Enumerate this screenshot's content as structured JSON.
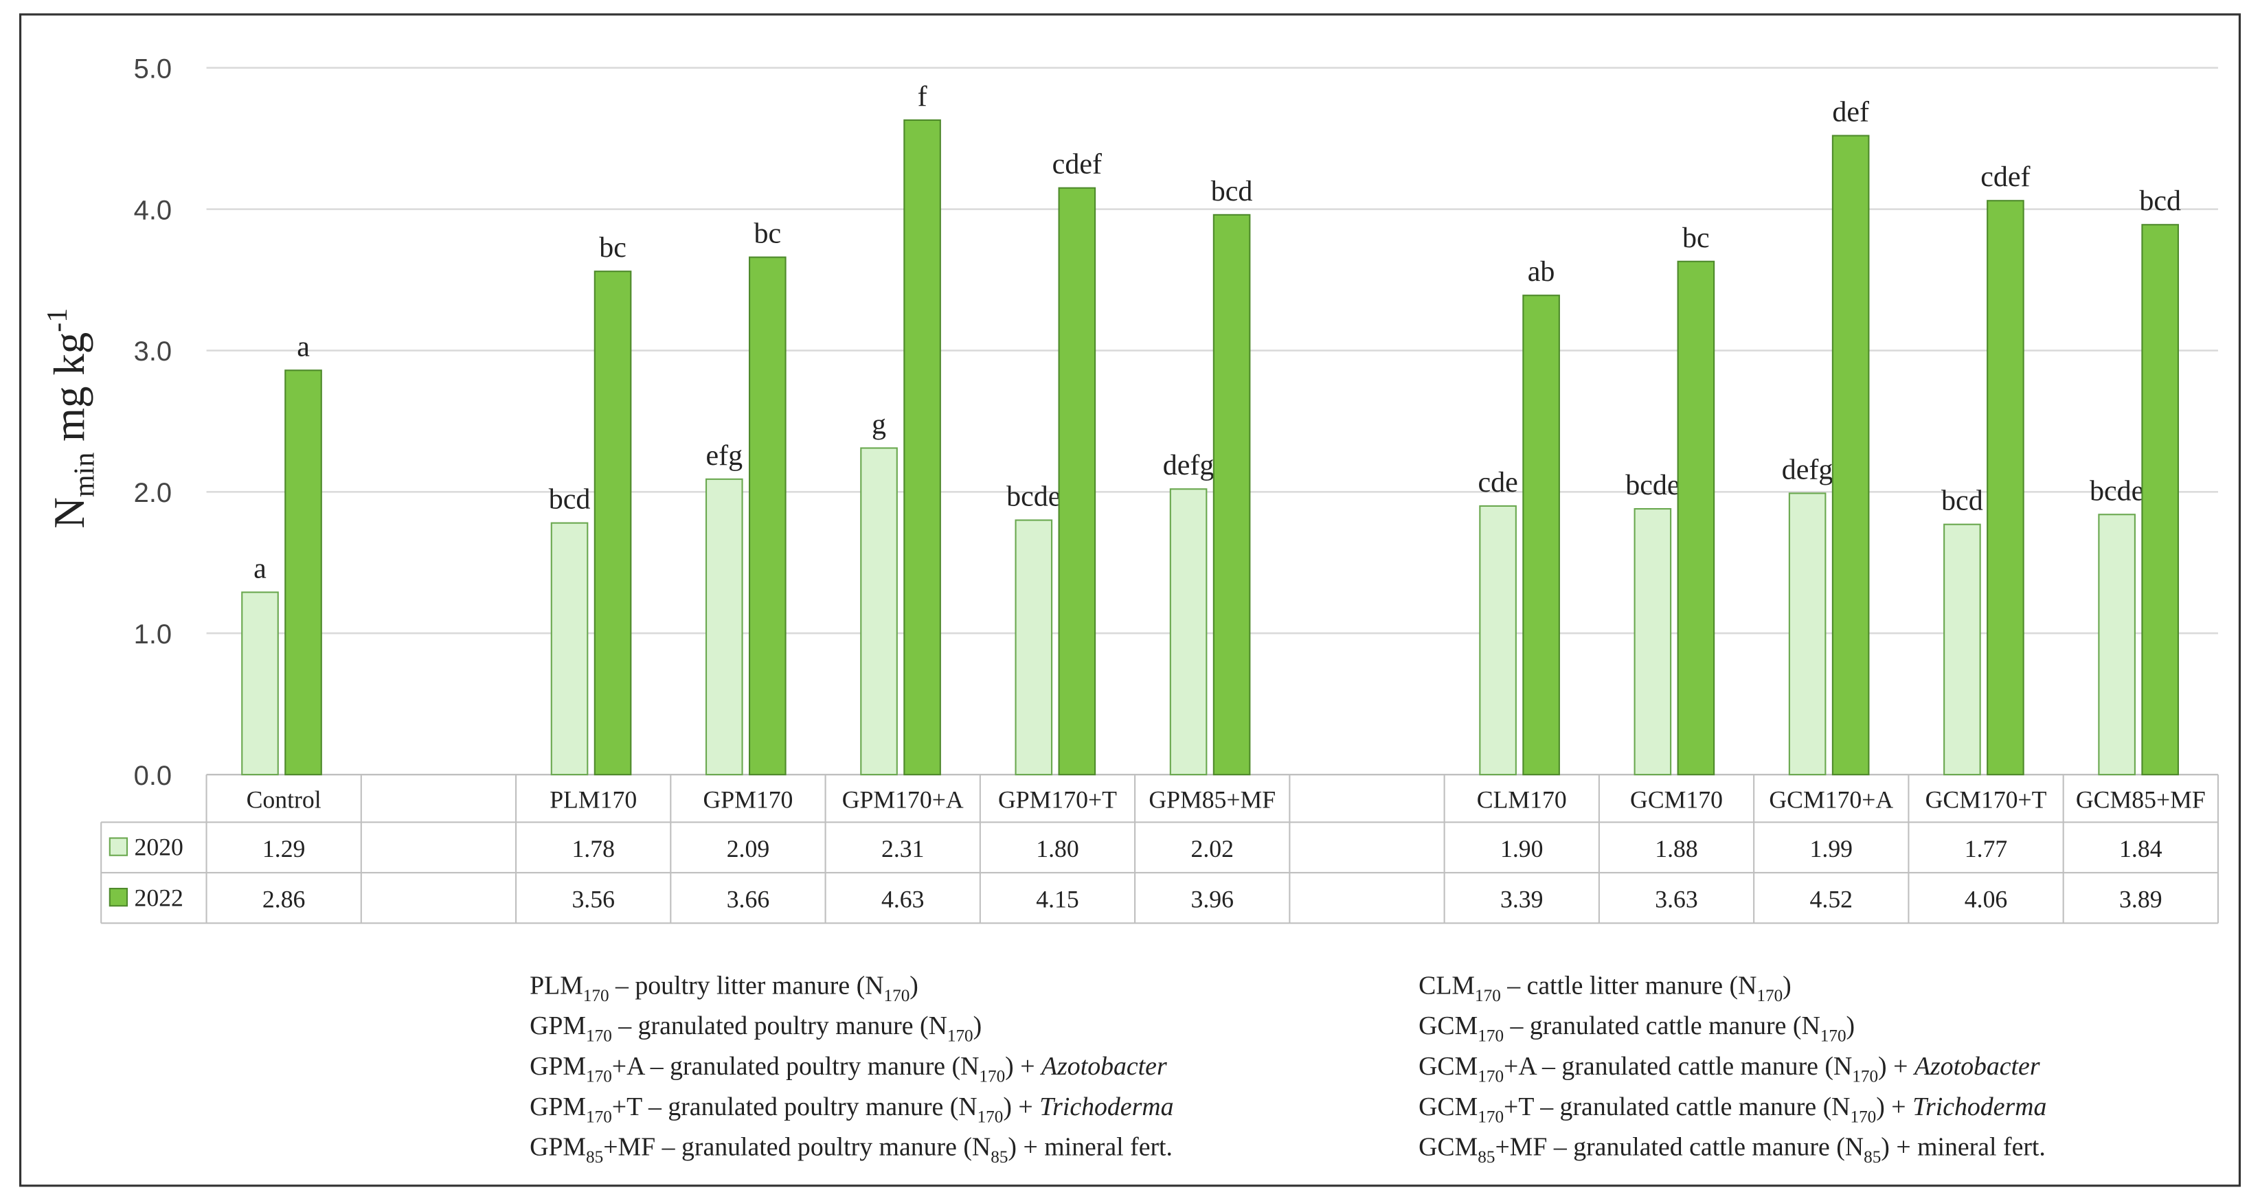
{
  "chart_data": {
    "type": "bar",
    "ylabel": {
      "base": "N",
      "sub": "min",
      "mid": " mg kg",
      "sup": "-1"
    },
    "categories": [
      "Control",
      null,
      "PLM170",
      "GPM170",
      "GPM170+A",
      "GPM170+T",
      "GPM85+MF",
      null,
      "CLM170",
      "GCM170",
      "GCM170+A",
      "GCM170+T",
      "GCM85+MF"
    ],
    "series": [
      {
        "name": "2020",
        "color": "#d9f2d0",
        "stroke": "#6aa84f",
        "values": [
          1.29,
          null,
          1.78,
          2.09,
          2.31,
          1.8,
          2.02,
          null,
          1.9,
          1.88,
          1.99,
          1.77,
          1.84
        ],
        "value_labels": [
          "1.29",
          null,
          "1.78",
          "2.09",
          "2.31",
          "1.80",
          "2.02",
          null,
          "1.90",
          "1.88",
          "1.99",
          "1.77",
          "1.84"
        ],
        "letters": [
          "a",
          null,
          "bcd",
          "efg",
          "g",
          "bcde",
          "defg",
          null,
          "cde",
          "bcde",
          "defg",
          "bcd",
          "bcde"
        ]
      },
      {
        "name": "2022",
        "color": "#7cc444",
        "stroke": "#4e8a2b",
        "values": [
          2.86,
          null,
          3.56,
          3.66,
          4.63,
          4.15,
          3.96,
          null,
          3.39,
          3.63,
          4.52,
          4.06,
          3.89
        ],
        "value_labels": [
          "2.86",
          null,
          "3.56",
          "3.66",
          "4.63",
          "4.15",
          "3.96",
          null,
          "3.39",
          "3.63",
          "4.52",
          "4.06",
          "3.89"
        ],
        "letters": [
          "a",
          null,
          "bc",
          "bc",
          "f",
          "cdef",
          "bcd",
          null,
          "ab",
          "bc",
          "def",
          "cdef",
          "bcd"
        ]
      }
    ],
    "ylim": [
      0,
      5
    ],
    "yticks": [
      {
        "value": 0,
        "label": "0.0"
      },
      {
        "value": 1,
        "label": "1.0"
      },
      {
        "value": 2,
        "label": "2.0"
      },
      {
        "value": 3,
        "label": "3.0"
      },
      {
        "value": 4,
        "label": "4.0"
      },
      {
        "value": 5,
        "label": "5.0"
      }
    ],
    "grid": true,
    "notes": {
      "left": [
        [
          "PLM",
          {
            "text": "170",
            "style": "sub"
          },
          " – poultry litter manure (N",
          {
            "text": "170",
            "style": "sub"
          },
          ")"
        ],
        [
          "GPM",
          {
            "text": "170",
            "style": "sub"
          },
          " – granulated poultry manure (N",
          {
            "text": "170",
            "style": "sub"
          },
          ")"
        ],
        [
          "GPM",
          {
            "text": "170",
            "style": "sub"
          },
          "+A – granulated poultry manure (N",
          {
            "text": "170",
            "style": "sub"
          },
          ") + ",
          {
            "text": "Azotobacter",
            "style": "italic"
          }
        ],
        [
          "GPM",
          {
            "text": "170",
            "style": "sub"
          },
          "+T – granulated poultry manure (N",
          {
            "text": "170",
            "style": "sub"
          },
          ") + ",
          {
            "text": "Trichoderma",
            "style": "italic"
          }
        ],
        [
          "GPM",
          {
            "text": "85",
            "style": "sub"
          },
          "+MF – granulated poultry manure (N",
          {
            "text": "85",
            "style": "sub"
          },
          ") + mineral fert."
        ]
      ],
      "right": [
        [
          "CLM",
          {
            "text": "170",
            "style": "sub"
          },
          " – cattle litter manure (N",
          {
            "text": "170",
            "style": "sub"
          },
          ")"
        ],
        [
          "GCM",
          {
            "text": "170",
            "style": "sub"
          },
          " – granulated cattle manure (N",
          {
            "text": "170",
            "style": "sub"
          },
          ")"
        ],
        [
          "GCM",
          {
            "text": "170",
            "style": "sub"
          },
          "+A – granulated cattle manure (N",
          {
            "text": "170",
            "style": "sub"
          },
          ") + ",
          {
            "text": "Azotobacter",
            "style": "italic"
          }
        ],
        [
          "GCM",
          {
            "text": "170",
            "style": "sub"
          },
          "+T – granulated cattle manure (N",
          {
            "text": "170",
            "style": "sub"
          },
          ") + ",
          {
            "text": "Trichoderma",
            "style": "italic"
          }
        ],
        [
          "GCM",
          {
            "text": "85",
            "style": "sub"
          },
          "+MF – granulated cattle manure (N",
          {
            "text": "85",
            "style": "sub"
          },
          ") + mineral fert."
        ]
      ]
    }
  }
}
